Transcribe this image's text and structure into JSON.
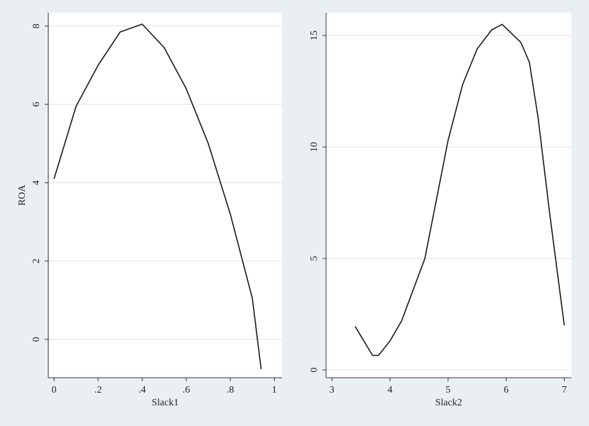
{
  "chart_data": [
    {
      "type": "line",
      "x_label": "Slack1",
      "y_label": "ROA",
      "color": "#1a1a1a",
      "x": [
        0,
        0.1,
        0.2,
        0.3,
        0.4,
        0.5,
        0.6,
        0.7,
        0.8,
        0.9,
        0.94
      ],
      "values": [
        4.1,
        5.95,
        7.0,
        7.85,
        8.05,
        7.45,
        6.4,
        5.0,
        3.2,
        1.05,
        -0.76
      ],
      "xlim": [
        -0.026,
        1.035
      ],
      "ylim": [
        -0.98,
        8.34
      ],
      "xticks": [
        0,
        {
          "value": 0.2,
          "label": ".2"
        },
        {
          "value": 0.4,
          "label": ".4"
        },
        {
          "value": 0.6,
          "label": ".6"
        },
        {
          "value": 0.8,
          "label": ".8"
        },
        1
      ],
      "yticks": [
        0,
        2,
        4,
        6,
        8
      ],
      "grid": true
    },
    {
      "type": "line",
      "x_label": "Slack2",
      "color": "#1a1a1a",
      "x": [
        3.4,
        3.7,
        3.8,
        4.0,
        4.2,
        4.6,
        5.0,
        5.25,
        5.5,
        5.75,
        5.93,
        6.25,
        6.4,
        6.55,
        6.75,
        7.0
      ],
      "values": [
        1.95,
        0.65,
        0.65,
        1.3,
        2.2,
        5.0,
        10.3,
        12.8,
        14.4,
        15.25,
        15.5,
        14.7,
        13.8,
        11.3,
        7.0,
        2.0
      ],
      "xlim": [
        2.9,
        7.12
      ],
      "ylim": [
        -0.35,
        16.02
      ],
      "xticks": [
        3,
        4,
        5,
        6,
        7
      ],
      "yticks": [
        0,
        5,
        10,
        15
      ],
      "grid": true
    }
  ]
}
